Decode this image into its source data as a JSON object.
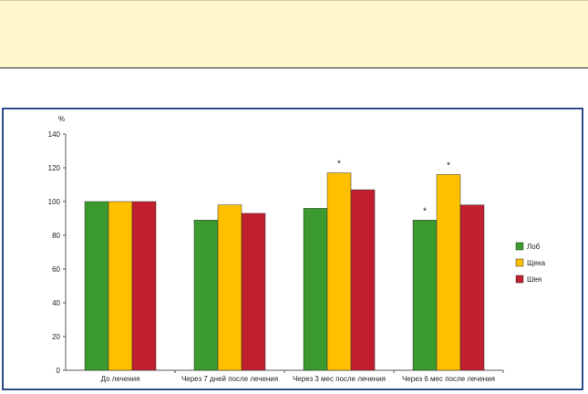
{
  "chart_data": {
    "type": "bar",
    "title": "",
    "ylabel_unit": "%",
    "ylim": [
      0,
      140
    ],
    "yticks": [
      0,
      20,
      40,
      60,
      80,
      100,
      120,
      140
    ],
    "ytick_labels": [
      "0",
      "20",
      "40",
      "60",
      "80",
      "100",
      "120",
      "140"
    ],
    "categories": [
      "До лечения",
      "Через 7 дней после лечения",
      "Через 3 мес после лечения",
      "Через 6 мес после лечения"
    ],
    "series": [
      {
        "name": "Лоб",
        "color": "#3a9a2e",
        "values": [
          100,
          89,
          96,
          89
        ]
      },
      {
        "name": "Щека",
        "color": "#ffc000",
        "values": [
          100,
          98,
          117,
          116
        ]
      },
      {
        "name": "Шея",
        "color": "#c0202e",
        "values": [
          100,
          93,
          107,
          98
        ]
      }
    ],
    "annotations": [
      {
        "text": "*",
        "category": 2,
        "series": 1
      },
      {
        "text": "*",
        "category": 3,
        "series": 0
      },
      {
        "text": "*",
        "category": 3,
        "series": 1
      }
    ],
    "legend_position": "right",
    "grid": false
  }
}
